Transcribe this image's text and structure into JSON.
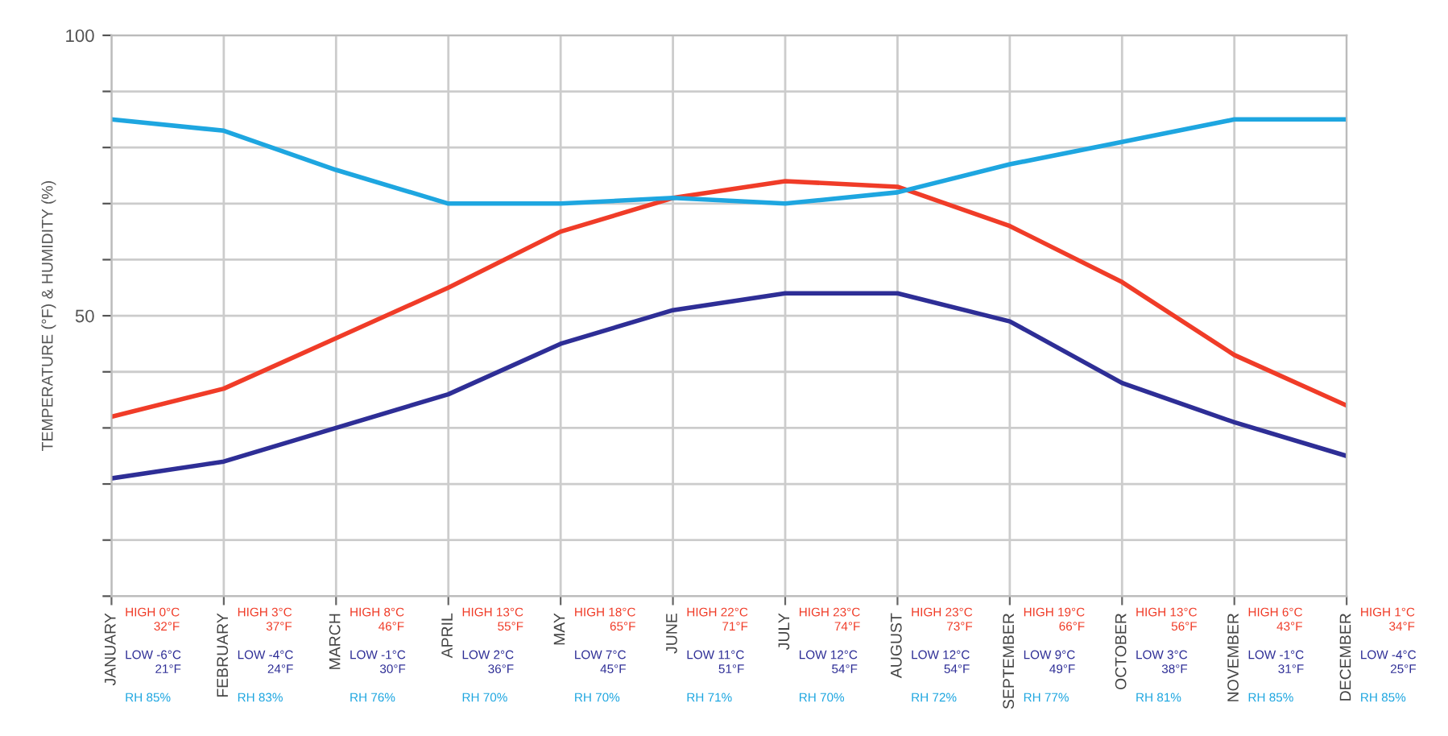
{
  "chart_data": {
    "type": "line",
    "ylabel": "TEMPERATURE (°F) & HUMIDITY (%)",
    "categories": [
      "JANUARY",
      "FEBRUARY",
      "MARCH",
      "APRIL",
      "MAY",
      "JUNE",
      "JULY",
      "AUGUST",
      "SEPTEMBER",
      "OCTOBER",
      "NOVEMBER",
      "DECEMBER"
    ],
    "series": [
      {
        "color": "#f03c28",
        "values": [
          32,
          37,
          46,
          55,
          65,
          71,
          74,
          73,
          66,
          56,
          43,
          34
        ],
        "value_labels": [
          "HIGH 0°C\n32°F",
          "HIGH 3°C\n37°F",
          "HIGH 8°C\n46°F",
          "HIGH 13°C\n55°F",
          "HIGH 18°C\n65°F",
          "HIGH 22°C\n71°F",
          "HIGH 23°C\n74°F",
          "HIGH 23°C\n73°F",
          "HIGH 19°C\n66°F",
          "HIGH 13°C\n56°F",
          "HIGH 6°C\n43°F",
          "HIGH 1°C\n34°F"
        ]
      },
      {
        "color": "#2e2e96",
        "values": [
          21,
          24,
          30,
          36,
          45,
          51,
          54,
          54,
          49,
          38,
          31,
          25
        ],
        "value_labels": [
          "LOW -6°C\n21°F",
          "LOW -4°C\n24°F",
          "LOW -1°C\n30°F",
          "LOW 2°C\n36°F",
          "LOW 7°C\n45°F",
          "LOW 11°C\n51°F",
          "LOW 12°C\n54°F",
          "LOW 12°C\n54°F",
          "LOW 9°C\n49°F",
          "LOW 3°C\n38°F",
          "LOW -1°C\n31°F",
          "LOW -4°C\n25°F"
        ]
      },
      {
        "color": "#1ea6e0",
        "values": [
          85,
          83,
          76,
          70,
          70,
          71,
          70,
          72,
          77,
          81,
          85,
          85
        ],
        "value_labels": [
          "RH 85%",
          "RH 83%",
          "RH 76%",
          "RH 70%",
          "RH 70%",
          "RH 71%",
          "RH 70%",
          "RH 72%",
          "RH 77%",
          "RH 81%",
          "RH 85%",
          "RH 85%"
        ]
      }
    ],
    "ylim": [
      0,
      100
    ],
    "yticks": [
      {
        "value": 0,
        "label": null
      },
      {
        "value": 10,
        "label": null
      },
      {
        "value": 20,
        "label": null
      },
      {
        "value": 30,
        "label": null
      },
      {
        "value": 40,
        "label": null
      },
      50,
      {
        "value": 60,
        "label": null
      },
      {
        "value": 70,
        "label": null
      },
      {
        "value": 80,
        "label": null
      },
      {
        "value": 90,
        "label": null
      },
      100
    ],
    "grid": true,
    "marker": "none",
    "line_style": "solid"
  }
}
